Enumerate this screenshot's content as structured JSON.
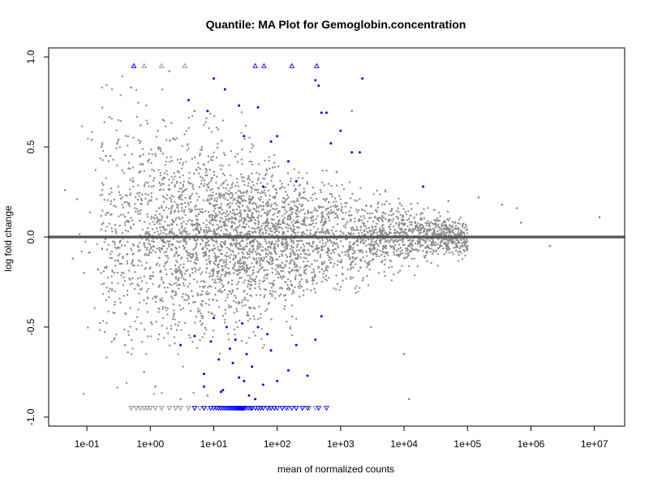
{
  "chart_data": {
    "type": "scatter",
    "title": "Quantile: MA Plot for Gemoglobin.concentration",
    "xlabel": "mean of normalized counts",
    "ylabel": "log fold change",
    "x_scale": "log10",
    "xlim": [
      0.025,
      30000000
    ],
    "ylim": [
      -1.05,
      1.05
    ],
    "x_ticks": [
      {
        "value": 0.1,
        "label": "1e-01"
      },
      {
        "value": 1,
        "label": "1e+00"
      },
      {
        "value": 10,
        "label": "1e+01"
      },
      {
        "value": 100,
        "label": "1e+02"
      },
      {
        "value": 1000,
        "label": "1e+03"
      },
      {
        "value": 10000,
        "label": "1e+04"
      },
      {
        "value": 100000,
        "label": "1e+05"
      },
      {
        "value": 1000000,
        "label": "1e+06"
      },
      {
        "value": 10000000,
        "label": "1e+07"
      }
    ],
    "y_ticks": [
      {
        "value": -1.0,
        "label": "-1.0"
      },
      {
        "value": -0.5,
        "label": "-0.5"
      },
      {
        "value": 0.0,
        "label": "0.0"
      },
      {
        "value": 0.5,
        "label": "0.5"
      },
      {
        "value": 1.0,
        "label": "1.0"
      }
    ],
    "reference_line_y": 0,
    "colors": {
      "not_significant": "#8c8c8c",
      "significant": "#0000ff",
      "reference_line": "#555555"
    },
    "series": [
      {
        "values": [
          [
            0.045,
            0.26
          ],
          [
            0.06,
            -0.12
          ],
          [
            0.07,
            0.21
          ],
          [
            0.09,
            -0.2
          ],
          [
            0.12,
            0.54
          ],
          [
            0.15,
            -0.18
          ],
          [
            0.2,
            0.45
          ],
          [
            0.3,
            0.52
          ],
          [
            0.4,
            -0.6
          ],
          [
            0.5,
            0.83
          ],
          [
            0.7,
            0.62
          ],
          [
            0.8,
            -0.75
          ],
          [
            1.2,
            -0.83
          ],
          [
            2,
            0.92
          ],
          [
            3,
            -0.9
          ],
          [
            5,
            0.7
          ],
          [
            8,
            -0.88
          ],
          [
            30000,
            0.15
          ],
          [
            50000,
            0.2
          ],
          [
            150000,
            0.22
          ],
          [
            350000,
            0.18
          ],
          [
            600000,
            0.16
          ],
          [
            700000,
            0.08
          ],
          [
            2000000,
            -0.05
          ],
          [
            12000000,
            0.11
          ],
          [
            12000,
            -0.9
          ],
          [
            10000,
            -0.65
          ],
          [
            3000,
            -0.5
          ],
          [
            1500,
            0.7
          ]
        ]
      },
      {
        "values": [
          [
            10,
            0.88
          ],
          [
            15,
            0.82
          ],
          [
            25,
            0.73
          ],
          [
            50,
            0.72
          ],
          [
            80,
            0.53
          ],
          [
            100,
            0.56
          ],
          [
            150,
            0.42
          ],
          [
            200,
            0.31
          ],
          [
            400,
            0.87
          ],
          [
            450,
            0.84
          ],
          [
            500,
            0.69
          ],
          [
            600,
            0.69
          ],
          [
            700,
            0.52
          ],
          [
            1000,
            0.59
          ],
          [
            1500,
            0.47
          ],
          [
            2000,
            0.47
          ],
          [
            2200,
            0.88
          ],
          [
            20000,
            0.28
          ],
          [
            4,
            0.76
          ],
          [
            8,
            0.7
          ],
          [
            30,
            0.56
          ],
          [
            60,
            0.28
          ],
          [
            3,
            -0.6
          ],
          [
            5,
            -0.55
          ],
          [
            7,
            -0.76
          ],
          [
            9,
            -0.58
          ],
          [
            10,
            -0.45
          ],
          [
            12,
            -0.68
          ],
          [
            14,
            -0.85
          ],
          [
            16,
            -0.5
          ],
          [
            18,
            -0.62
          ],
          [
            20,
            -0.7
          ],
          [
            22,
            -0.57
          ],
          [
            25,
            -0.78
          ],
          [
            28,
            -0.48
          ],
          [
            30,
            -0.8
          ],
          [
            33,
            -0.65
          ],
          [
            40,
            -0.72
          ],
          [
            50,
            -0.5
          ],
          [
            60,
            -0.82
          ],
          [
            80,
            -0.63
          ],
          [
            100,
            -0.8
          ],
          [
            150,
            -0.74
          ],
          [
            200,
            -0.6
          ],
          [
            300,
            -0.77
          ],
          [
            400,
            -0.57
          ],
          [
            500,
            -0.44
          ],
          [
            7,
            -0.83
          ],
          [
            13,
            -0.86
          ],
          [
            36,
            -0.88
          ],
          [
            45,
            -0.9
          ],
          [
            70,
            -0.54
          ]
        ]
      }
    ],
    "clipped_up": {
      "y": 0.95,
      "gray_x": [
        0.8,
        1.5,
        3.5,
        0.55
      ],
      "blue_x": [
        0.55,
        45,
        62,
        170,
        420
      ]
    },
    "clipped_down": {
      "y": -0.95,
      "gray_x": [
        0.5,
        0.6,
        0.7,
        0.8,
        0.9,
        1.0,
        1.2,
        1.5,
        2,
        2.5,
        3,
        4,
        5,
        6,
        7,
        8,
        9,
        11,
        13,
        16,
        20,
        25,
        30,
        40,
        50,
        60,
        75,
        90,
        120,
        150,
        200,
        250,
        320,
        400
      ],
      "blue_x": [
        5,
        7,
        9,
        10,
        11,
        12,
        13,
        14,
        15,
        16,
        17,
        18,
        19,
        20,
        21,
        22,
        23,
        24,
        25,
        26,
        27,
        28,
        29,
        30,
        32,
        35,
        38,
        40,
        45,
        50,
        55,
        60,
        70,
        80,
        90,
        100,
        120,
        140,
        170,
        200,
        250,
        300,
        450,
        600
      ]
    }
  }
}
